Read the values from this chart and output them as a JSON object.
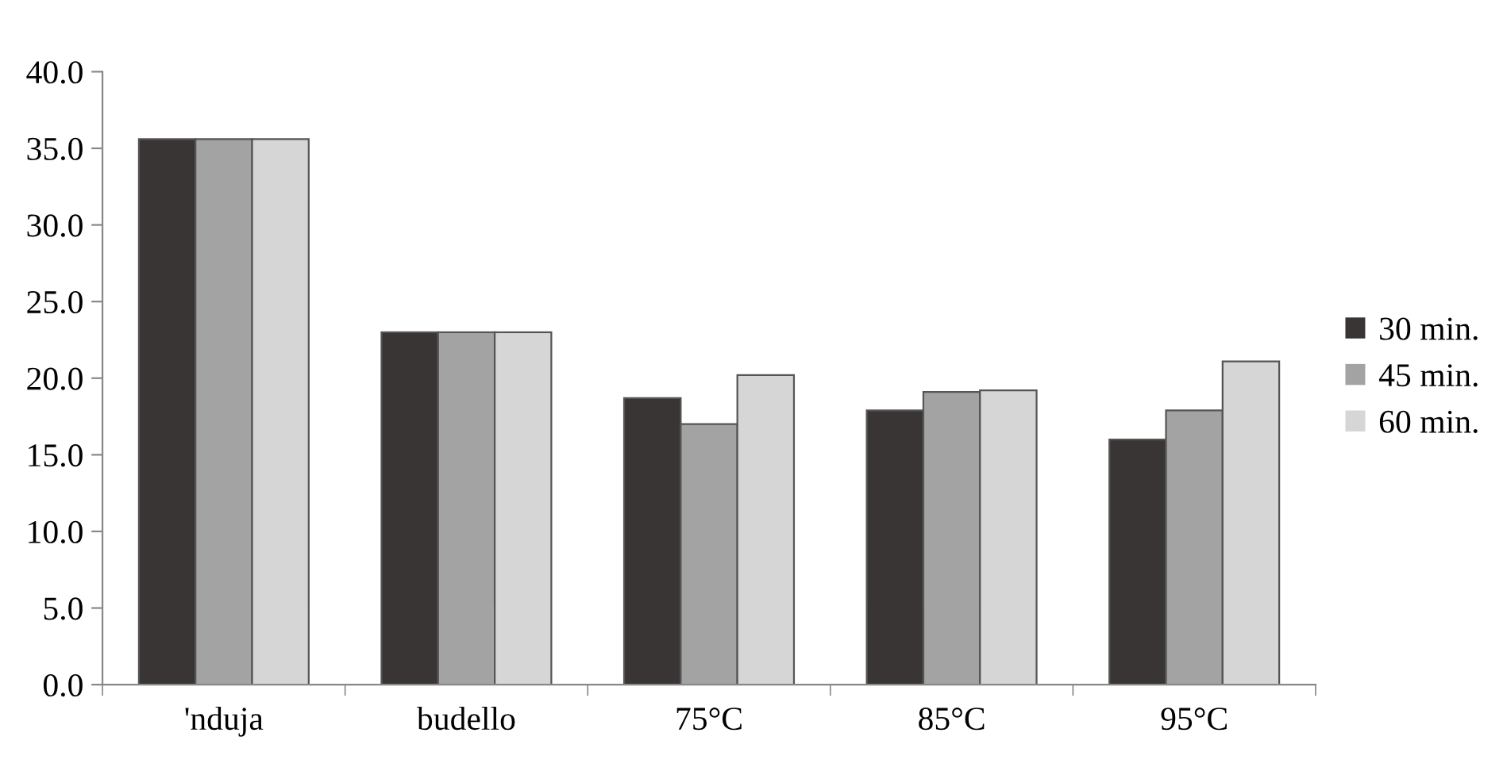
{
  "chart_data": {
    "type": "bar",
    "categories": [
      "'nduja",
      "budello",
      "75°C",
      "85°C",
      "95°C"
    ],
    "series": [
      {
        "name": "30 min.",
        "color": "#3a3535",
        "values": [
          35.6,
          23.0,
          18.7,
          17.9,
          16.0
        ]
      },
      {
        "name": "45 min.",
        "color": "#a3a3a3",
        "values": [
          35.6,
          23.0,
          17.0,
          19.1,
          17.9
        ]
      },
      {
        "name": "60 min.",
        "color": "#d6d6d6",
        "values": [
          35.6,
          23.0,
          20.2,
          19.2,
          21.1
        ]
      }
    ],
    "ylim": [
      0,
      40
    ],
    "yticks": [
      {
        "value": 0,
        "label": "0.0"
      },
      {
        "value": 5,
        "label": "5.0"
      },
      {
        "value": 10,
        "label": "10.0"
      },
      {
        "value": 15,
        "label": "15.0"
      },
      {
        "value": 20,
        "label": "20.0"
      },
      {
        "value": 25,
        "label": "25.0"
      },
      {
        "value": 30,
        "label": "30.0"
      },
      {
        "value": 35,
        "label": "35.0"
      },
      {
        "value": 40,
        "label": "40.0"
      }
    ],
    "grid": false,
    "legend": "right"
  }
}
